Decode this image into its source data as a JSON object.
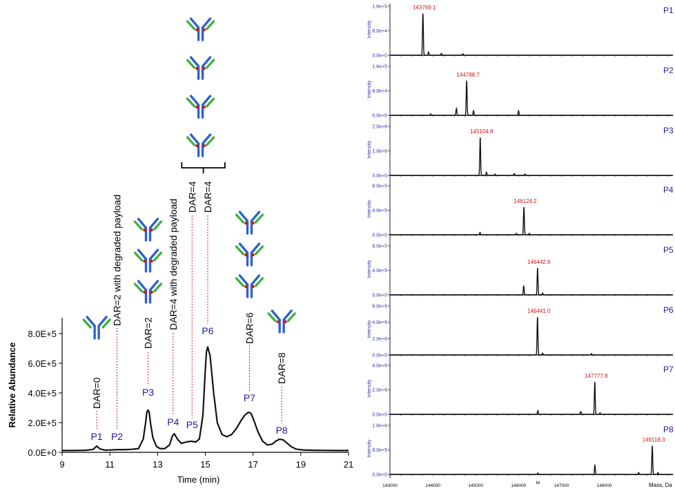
{
  "colors": {
    "peak_label": "#1a1aa0",
    "dar_line": "#d02020",
    "trace": "#111111",
    "mass_label": "#d01010",
    "panel_label": "#1a1aa0",
    "spectrum_axis": "#3030a0",
    "antibody_heavy": "#3060d0",
    "antibody_light": "#40b040",
    "payload": "#c02020"
  },
  "icons": {
    "antibody": "antibody-icon"
  },
  "chart_data": [
    {
      "type": "line",
      "xlabel": "Time (min)",
      "ylabel": "Relative Abundance",
      "xlim": [
        9,
        21
      ],
      "ylim": [
        0,
        1000000
      ],
      "x_ticks": [
        "9",
        "11",
        "13",
        "15",
        "17",
        "19",
        "21"
      ],
      "y_ticks": [
        "0.0E+0",
        "2.0E+5",
        "4.0E+5",
        "6.0E+5",
        "8.0E+5"
      ],
      "series": [
        {
          "x": [
            9.0,
            9.5,
            10.0,
            10.3,
            10.45,
            10.6,
            10.8,
            11.0,
            11.3,
            11.6,
            11.9,
            12.2,
            12.4,
            12.5,
            12.55,
            12.6,
            12.65,
            12.7,
            12.8,
            12.95,
            13.1,
            13.3,
            13.5,
            13.62,
            13.7,
            13.85,
            14.0,
            14.2,
            14.4,
            14.6,
            14.75,
            14.9,
            15.0,
            15.05,
            15.1,
            15.2,
            15.35,
            15.5,
            15.7,
            15.9,
            16.1,
            16.3,
            16.5,
            16.65,
            16.8,
            16.9,
            17.0,
            17.2,
            17.4,
            17.6,
            17.8,
            17.95,
            18.1,
            18.25,
            18.4,
            18.6,
            18.8,
            19.1,
            19.5,
            20.0,
            20.5,
            21.0
          ],
          "y": [
            12000,
            12000,
            14000,
            20000,
            42000,
            22000,
            15000,
            16000,
            18000,
            18000,
            20000,
            25000,
            90000,
            200000,
            270000,
            285000,
            270000,
            200000,
            100000,
            40000,
            25000,
            25000,
            50000,
            110000,
            125000,
            85000,
            60000,
            70000,
            75000,
            70000,
            90000,
            250000,
            560000,
            680000,
            710000,
            650000,
            400000,
            200000,
            120000,
            105000,
            120000,
            160000,
            215000,
            250000,
            270000,
            265000,
            230000,
            140000,
            75000,
            50000,
            55000,
            75000,
            88000,
            85000,
            65000,
            38000,
            22000,
            16000,
            14000,
            13000,
            12000,
            12000
          ]
        }
      ],
      "peaks": [
        {
          "name": "P1",
          "time": 10.45,
          "dar": "DAR=0"
        },
        {
          "name": "P2",
          "time": 11.3,
          "dar": "DAR=2 with degraded payload"
        },
        {
          "name": "P3",
          "time": 12.6,
          "dar": "DAR=2"
        },
        {
          "name": "P4",
          "time": 13.65,
          "dar": "DAR=4 with degraded payload"
        },
        {
          "name": "P5",
          "time": 14.3,
          "dar": "DAR=4"
        },
        {
          "name": "P6",
          "time": 15.1,
          "dar": "DAR=4"
        },
        {
          "name": "P7",
          "time": 16.85,
          "dar": "DAR=6"
        },
        {
          "name": "P8",
          "time": 18.2,
          "dar": "DAR=8"
        }
      ]
    },
    {
      "type": "line",
      "xlabel": "Mass, Da",
      "ylabel": "Intensity",
      "xlim": [
        143000,
        149600
      ],
      "x_ticks": [
        "143000",
        "144000",
        "145000",
        "146000",
        "147000",
        "148000"
      ],
      "x_axis_marker": "M",
      "panels": [
        {
          "label": "P1",
          "mass_label": "143769.1",
          "peak_mass": 143769.1,
          "ymax": 160000,
          "y_ticks": [
            "1.6e+5",
            "8.0e+4",
            "0.0e+0"
          ],
          "peaks": [
            {
              "m": 143769.1,
              "h": 0.9
            },
            {
              "m": 143900,
              "h": 0.07
            },
            {
              "m": 144200,
              "h": 0.04
            },
            {
              "m": 144700,
              "h": 0.03
            }
          ]
        },
        {
          "label": "P2",
          "mass_label": "144788.7",
          "peak_mass": 144788.7,
          "ymax": 160000,
          "y_ticks": [
            "1.6e+5",
            "8.0e+4",
            "0.0e+0"
          ],
          "peaks": [
            {
              "m": 144788.7,
              "h": 0.75
            },
            {
              "m": 144550,
              "h": 0.15
            },
            {
              "m": 144950,
              "h": 0.1
            },
            {
              "m": 146000,
              "h": 0.1
            },
            {
              "m": 143950,
              "h": 0.03
            }
          ]
        },
        {
          "label": "P3",
          "mass_label": "145104.8",
          "peak_mass": 145104.8,
          "ymax": 2000000,
          "y_ticks": [
            "2.0e+6",
            "1.0e+6",
            "0.0e+0"
          ],
          "peaks": [
            {
              "m": 145104.8,
              "h": 0.82
            },
            {
              "m": 145250,
              "h": 0.07
            },
            {
              "m": 145450,
              "h": 0.03
            },
            {
              "m": 145900,
              "h": 0.04
            },
            {
              "m": 146150,
              "h": 0.03
            }
          ]
        },
        {
          "label": "P4",
          "mass_label": "146124.2",
          "peak_mass": 146124.2,
          "ymax": 800000,
          "y_ticks": [
            "8.0e+5",
            "4.0e+5",
            "0.0e+0"
          ],
          "peaks": [
            {
              "m": 146124.2,
              "h": 0.6
            },
            {
              "m": 145100,
              "h": 0.05
            },
            {
              "m": 145950,
              "h": 0.03
            },
            {
              "m": 146250,
              "h": 0.03
            }
          ]
        },
        {
          "label": "P5",
          "mass_label": "146442.6",
          "peak_mass": 146442.6,
          "ymax": 800000,
          "y_ticks": [
            "8.0e+5",
            "4.0e+5",
            "0.0e+0"
          ],
          "peaks": [
            {
              "m": 146442.6,
              "h": 0.58
            },
            {
              "m": 146120,
              "h": 0.2
            },
            {
              "m": 146560,
              "h": 0.04
            }
          ]
        },
        {
          "label": "P6",
          "mass_label": "146441.0",
          "peak_mass": 146441.0,
          "ymax": 6000000,
          "y_ticks": [
            "6.0e+6",
            "4.0e+6",
            "2.0e+6",
            "0.0e+0"
          ],
          "peaks": [
            {
              "m": 146441.0,
              "h": 0.82
            },
            {
              "m": 146560,
              "h": 0.04
            },
            {
              "m": 147700,
              "h": 0.03
            }
          ]
        },
        {
          "label": "P7",
          "mass_label": "147777.8",
          "peak_mass": 147777.8,
          "ymax": 4000000,
          "y_ticks": [
            "4.0e+6",
            "2.0e+6",
            "0.0e+0"
          ],
          "peaks": [
            {
              "m": 147777.8,
              "h": 0.7
            },
            {
              "m": 146450,
              "h": 0.08
            },
            {
              "m": 147450,
              "h": 0.06
            },
            {
              "m": 147900,
              "h": 0.03
            }
          ]
        },
        {
          "label": "P8",
          "mass_label": "149118.3",
          "peak_mass": 149118.3,
          "ymax": 1600000,
          "y_ticks": [
            "1.6e+6",
            "8.0e+5",
            "0.0e+0"
          ],
          "peaks": [
            {
              "m": 149118.3,
              "h": 0.62
            },
            {
              "m": 147780,
              "h": 0.2
            },
            {
              "m": 148800,
              "h": 0.04
            },
            {
              "m": 149250,
              "h": 0.04
            },
            {
              "m": 146450,
              "h": 0.03
            }
          ]
        }
      ]
    }
  ]
}
